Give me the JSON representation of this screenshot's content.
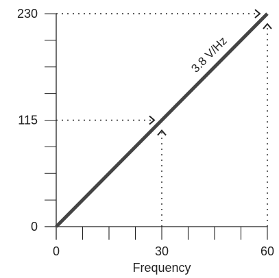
{
  "chart_data": {
    "type": "line",
    "title": "",
    "xlabel": "Frequency",
    "ylabel": "",
    "xlim": [
      0,
      60
    ],
    "ylim": [
      0,
      230
    ],
    "x_tick_labels": [
      "0",
      "30",
      "60"
    ],
    "x_tick_label_values": [
      0,
      30,
      60
    ],
    "x_minor_tick_values": [
      0,
      7.5,
      15,
      22.5,
      30,
      37.5,
      45,
      52.5,
      60
    ],
    "y_tick_labels": [
      "0",
      "115",
      "230"
    ],
    "y_tick_label_values": [
      0,
      115,
      230
    ],
    "y_minor_tick_values": [
      0,
      28.75,
      57.5,
      86.25,
      115,
      143.75,
      172.5,
      201.25,
      230
    ],
    "grid": false,
    "series": [
      {
        "x": [
          0,
          60
        ],
        "y": [
          0,
          230
        ]
      }
    ],
    "annotation": "3.8 V/Hz",
    "reference_points": [
      {
        "x": 30,
        "y": 115
      },
      {
        "x": 60,
        "y": 230
      }
    ],
    "colors": {
      "line": "#444444",
      "axis": "#222222",
      "guide": "#222222"
    }
  }
}
